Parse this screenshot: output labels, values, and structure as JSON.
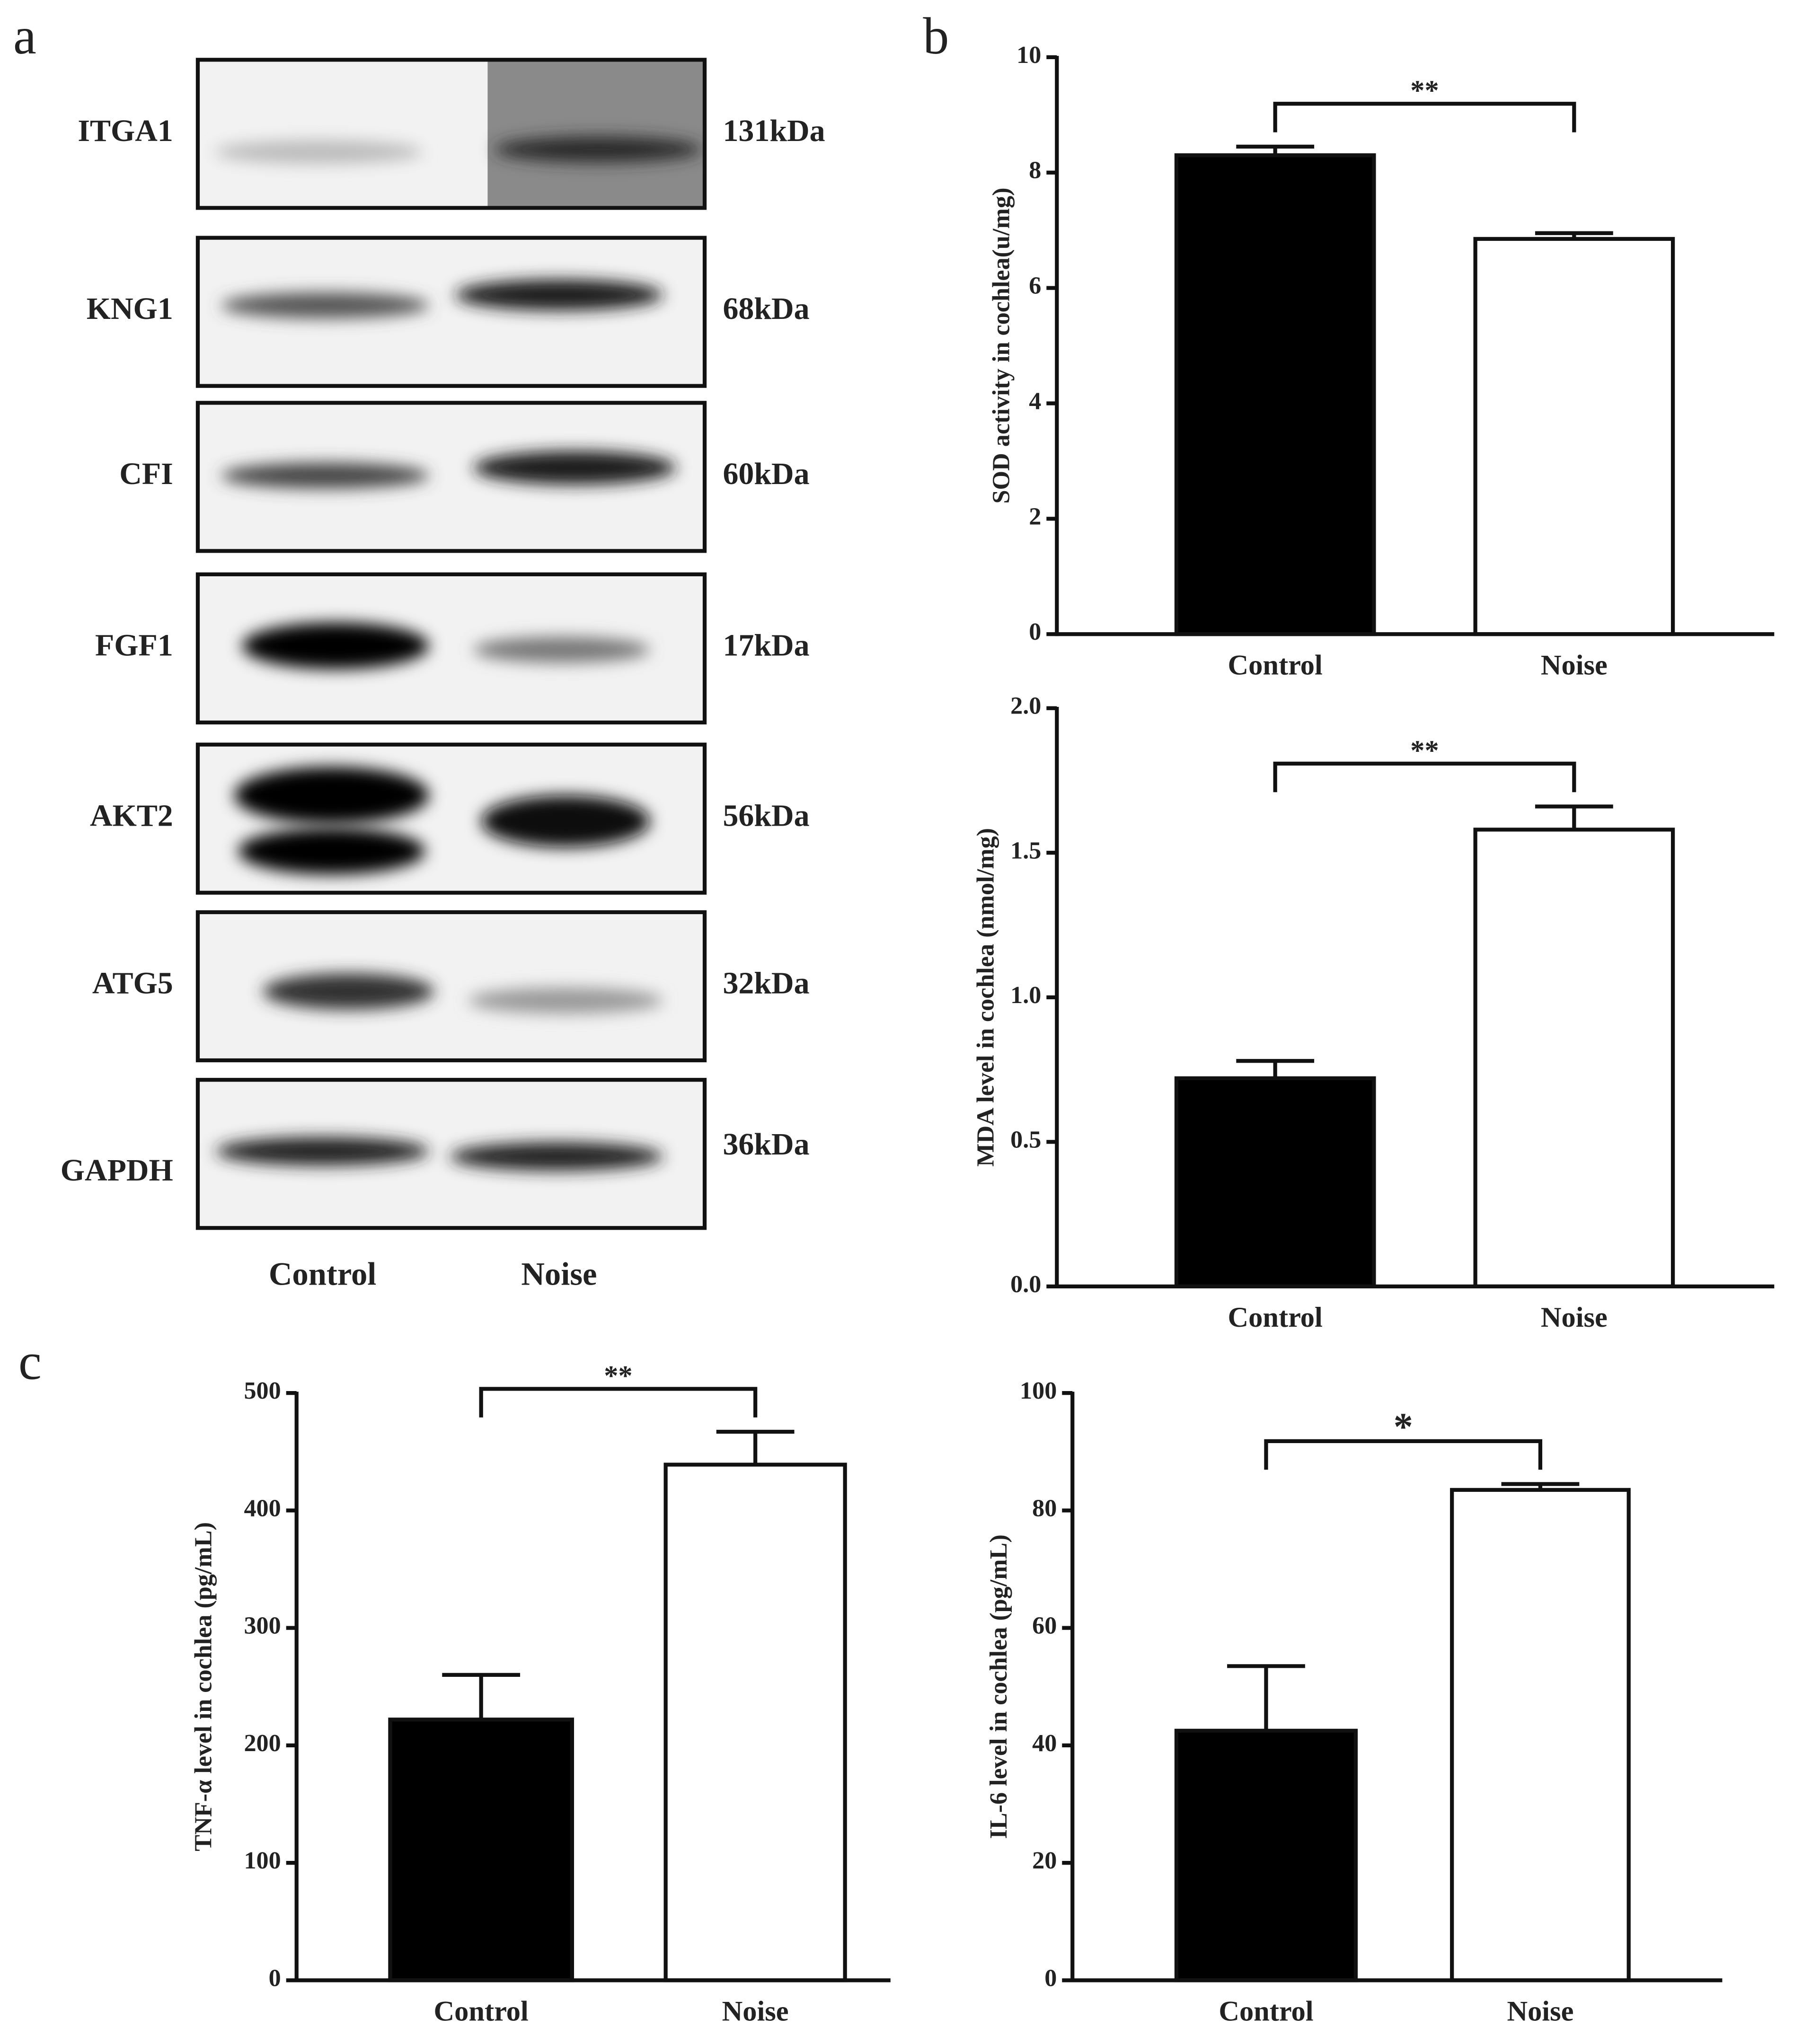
{
  "panel_labels": [
    "a",
    "b",
    "c"
  ],
  "blot": {
    "proteins": [
      "ITGA1",
      "KNG1",
      "CFI",
      "FGF1",
      "AKT2",
      "ATG5",
      "GAPDH"
    ],
    "sizes": [
      "131kDa",
      "68kDa",
      "60kDa",
      "17kDa",
      "56kDa",
      "32kDa",
      "36kDa"
    ],
    "lanes": [
      "Control",
      "Noise"
    ]
  },
  "chart_data": [
    {
      "type": "bar",
      "y_label": "SOD activity in cochlea(u/mg)",
      "categories": [
        "Control",
        "Noise"
      ],
      "values": [
        8.3,
        6.85
      ],
      "errors": [
        0.15,
        0.1
      ],
      "colors": [
        "#000000",
        "#ffffff"
      ],
      "annotation": "**",
      "ylim": [
        0,
        10
      ],
      "yticks": [
        0,
        2,
        4,
        6,
        8,
        10
      ]
    },
    {
      "type": "bar",
      "y_label": "MDA level in cochlea (nmol/mg)",
      "categories": [
        "Control",
        "Noise"
      ],
      "values": [
        0.72,
        1.58
      ],
      "errors": [
        0.06,
        0.08
      ],
      "colors": [
        "#000000",
        "#ffffff"
      ],
      "annotation": "**",
      "ylim": [
        0,
        2
      ],
      "yticks": [
        {
          "value": 0,
          "label": "0.0"
        },
        0.5,
        {
          "value": 1,
          "label": "1.0"
        },
        1.5,
        {
          "value": 2,
          "label": "2.0"
        }
      ]
    },
    {
      "type": "bar",
      "y_label": "TNF-α level in cochlea (pg/mL)",
      "categories": [
        "Control",
        "Noise"
      ],
      "values": [
        222,
        439
      ],
      "errors": [
        38,
        28
      ],
      "colors": [
        "#000000",
        "#ffffff"
      ],
      "annotation": "**",
      "ylim": [
        0,
        500
      ],
      "yticks": [
        0,
        100,
        200,
        300,
        400,
        500
      ]
    },
    {
      "type": "bar",
      "y_label": "IL-6 level in cochlea (pg/mL)",
      "categories": [
        "Control",
        "Noise"
      ],
      "values": [
        42.5,
        83.5
      ],
      "errors": [
        11,
        1
      ],
      "colors": [
        "#000000",
        "#ffffff"
      ],
      "annotation": "*",
      "ylim": [
        0,
        100
      ],
      "yticks": [
        0,
        20,
        40,
        60,
        80,
        100
      ]
    }
  ]
}
